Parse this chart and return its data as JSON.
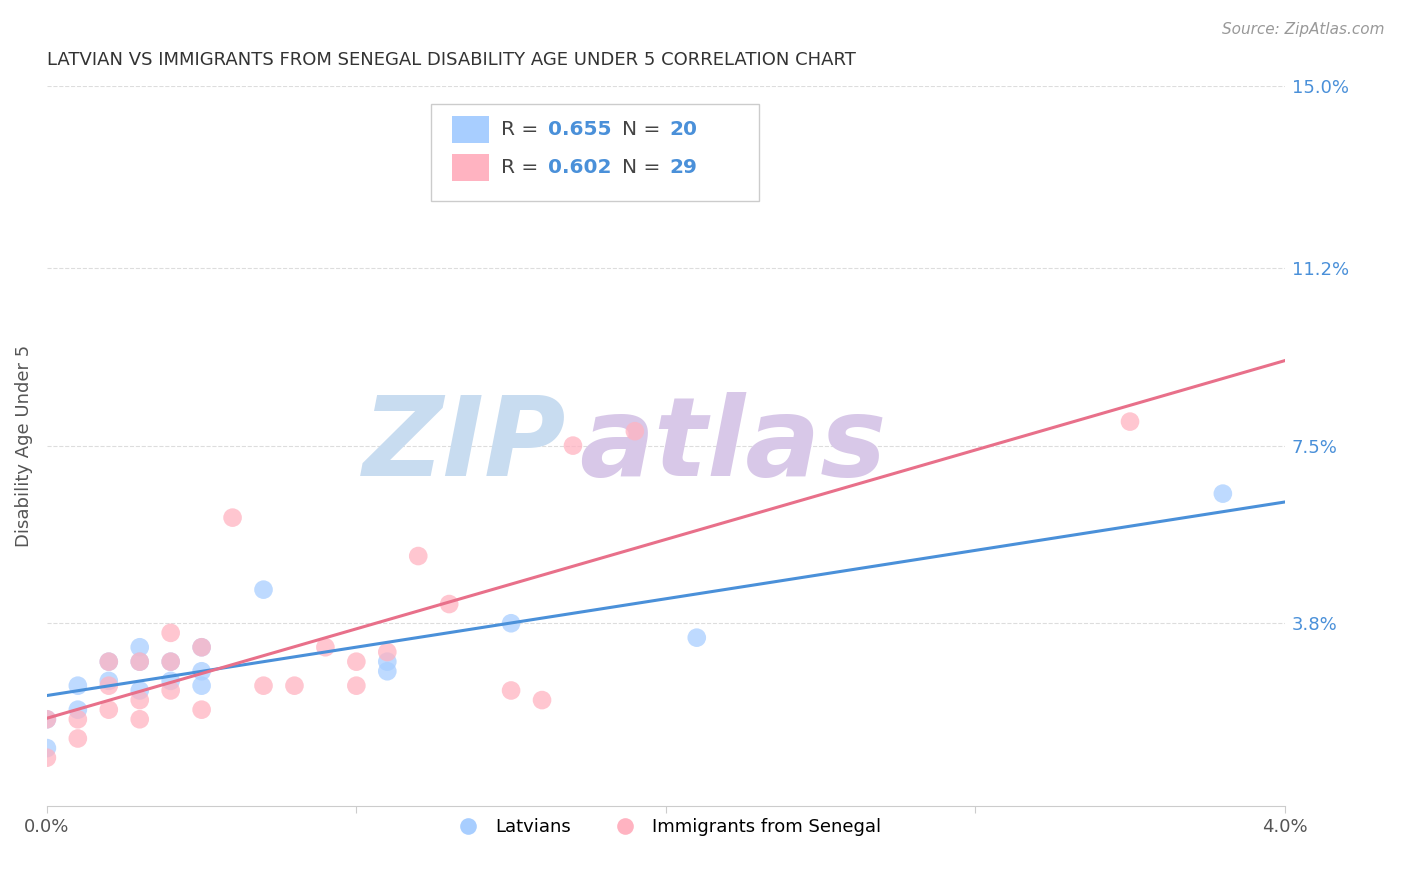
{
  "title": "LATVIAN VS IMMIGRANTS FROM SENEGAL DISABILITY AGE UNDER 5 CORRELATION CHART",
  "source": "Source: ZipAtlas.com",
  "ylabel": "Disability Age Under 5",
  "xlim": [
    0.0,
    0.04
  ],
  "ylim": [
    0.0,
    0.15
  ],
  "xtick_positions": [
    0.0,
    0.01,
    0.02,
    0.03,
    0.04
  ],
  "xtick_labels": [
    "0.0%",
    "",
    "",
    "",
    "4.0%"
  ],
  "ytick_labels_right": [
    "15.0%",
    "11.2%",
    "7.5%",
    "3.8%"
  ],
  "ytick_vals_right": [
    0.15,
    0.112,
    0.075,
    0.038
  ],
  "legend_r_latvian": "0.655",
  "legend_n_latvian": "20",
  "legend_r_senegal": "0.602",
  "legend_n_senegal": "29",
  "latvian_color": "#A8CEFF",
  "senegal_color": "#FFB3C1",
  "latvian_line_color": "#4A90D9",
  "senegal_line_color": "#E8708A",
  "watermark_zip": "ZIP",
  "watermark_atlas": "atlas",
  "watermark_color_zip": "#C8DCF0",
  "watermark_color_atlas": "#D8C8E8",
  "latvian_x": [
    0.0,
    0.0,
    0.001,
    0.001,
    0.002,
    0.002,
    0.003,
    0.003,
    0.003,
    0.004,
    0.004,
    0.005,
    0.005,
    0.005,
    0.007,
    0.011,
    0.011,
    0.015,
    0.021,
    0.038
  ],
  "latvian_y": [
    0.012,
    0.018,
    0.02,
    0.025,
    0.026,
    0.03,
    0.024,
    0.03,
    0.033,
    0.026,
    0.03,
    0.025,
    0.033,
    0.028,
    0.045,
    0.03,
    0.028,
    0.038,
    0.035,
    0.065
  ],
  "senegal_x": [
    0.0,
    0.0,
    0.001,
    0.001,
    0.002,
    0.002,
    0.002,
    0.003,
    0.003,
    0.003,
    0.004,
    0.004,
    0.004,
    0.005,
    0.005,
    0.006,
    0.007,
    0.008,
    0.009,
    0.01,
    0.01,
    0.011,
    0.012,
    0.013,
    0.015,
    0.016,
    0.017,
    0.019,
    0.035
  ],
  "senegal_y": [
    0.01,
    0.018,
    0.014,
    0.018,
    0.02,
    0.025,
    0.03,
    0.018,
    0.022,
    0.03,
    0.024,
    0.03,
    0.036,
    0.02,
    0.033,
    0.06,
    0.025,
    0.025,
    0.033,
    0.025,
    0.03,
    0.032,
    0.052,
    0.042,
    0.024,
    0.022,
    0.075,
    0.078,
    0.08
  ],
  "bg_color": "#FFFFFF",
  "grid_color": "#DDDDDD"
}
